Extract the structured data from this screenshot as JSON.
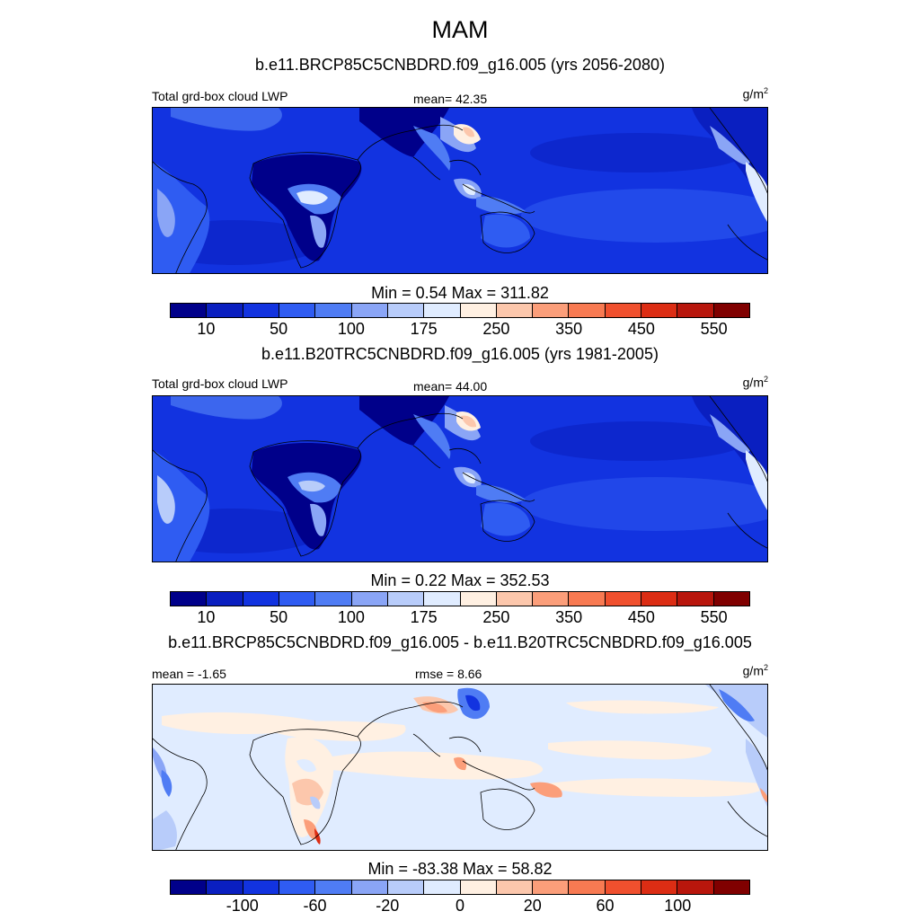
{
  "figure": {
    "season_title": "MAM",
    "units": "g/m",
    "units_exponent": "2"
  },
  "panels": [
    {
      "subtitle": "b.e11.BRCP85C5CNBDRD.f09_g16.005 (yrs 2056-2080)",
      "left_label": "Total grd-box cloud LWP",
      "center_label": "mean=  42.35",
      "mean": 42.35,
      "minmax_text": "Min =   0.54 Max = 311.82",
      "min": 0.54,
      "max": 311.82
    },
    {
      "subtitle": "b.e11.B20TRC5CNBDRD.f09_g16.005 (yrs 1981-2005)",
      "left_label": "Total grd-box cloud LWP",
      "center_label": "mean=  44.00",
      "mean": 44.0,
      "minmax_text": "Min =   0.22 Max = 352.53",
      "min": 0.22,
      "max": 352.53
    },
    {
      "subtitle": "b.e11.BRCP85C5CNBDRD.f09_g16.005 - b.e11.B20TRC5CNBDRD.f09_g16.005",
      "left_label": "mean =  -1.65",
      "center_label": "rmse =   8.66",
      "mean": -1.65,
      "rmse": 8.66,
      "minmax_text": "Min = -83.38 Max =  58.82",
      "min": -83.38,
      "max": 58.82
    }
  ],
  "colorbars": {
    "absolute": {
      "colors": [
        "#00008a",
        "#0a1fc0",
        "#1233e0",
        "#2f5cf2",
        "#4f7cf4",
        "#8aa5f6",
        "#b8ccfa",
        "#e0ecff",
        "#fff0e2",
        "#fcc7ac",
        "#fb9e7a",
        "#f87a52",
        "#f0502e",
        "#dc2d14",
        "#b8160c",
        "#800000"
      ],
      "tick_labels": [
        "10",
        "50",
        "100",
        "175",
        "250",
        "350",
        "450",
        "550"
      ],
      "tick_boundaries": [
        1,
        3,
        5,
        7,
        9,
        11,
        13,
        15
      ]
    },
    "difference": {
      "colors": [
        "#00008a",
        "#0a1fc0",
        "#1233e0",
        "#2f5cf2",
        "#4f7cf4",
        "#8aa5f6",
        "#b8ccfa",
        "#e0ecff",
        "#fff0e2",
        "#fcc7ac",
        "#fb9e7a",
        "#f87a52",
        "#f0502e",
        "#dc2d14",
        "#b8160c",
        "#800000"
      ],
      "tick_labels": [
        "-100",
        "-60",
        "-20",
        "0",
        "20",
        "60",
        "100"
      ],
      "tick_boundaries": [
        2,
        4,
        6,
        8,
        10,
        12,
        14
      ]
    }
  }
}
